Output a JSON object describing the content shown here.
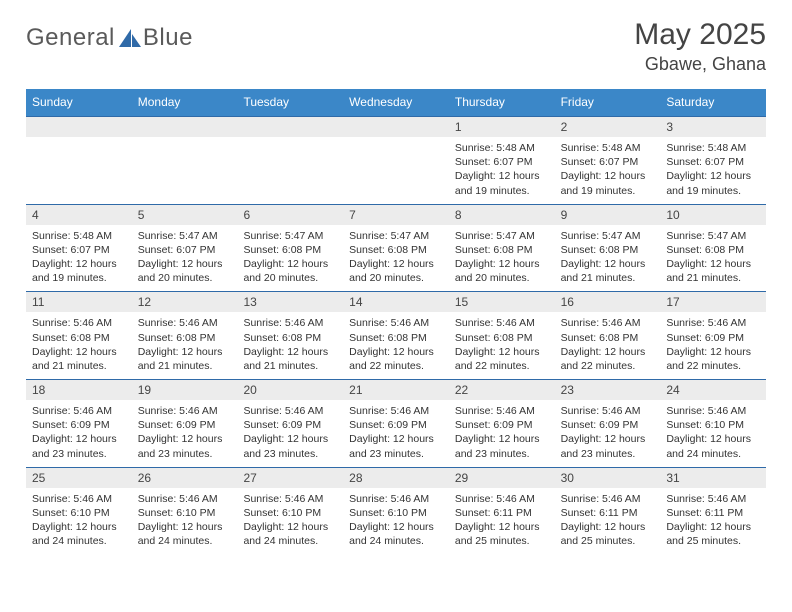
{
  "brand": {
    "name_part1": "General",
    "name_part2": "Blue",
    "text_color": "#5a5a5a",
    "icon_color": "#2f6aa8"
  },
  "title": {
    "month_year": "May 2025",
    "location": "Gbawe, Ghana"
  },
  "colors": {
    "header_bg": "#3b87c8",
    "week_divider": "#2f6aa8",
    "day_strip_bg": "#ececec",
    "page_bg": "#ffffff",
    "text": "#333333"
  },
  "weekdays": [
    "Sunday",
    "Monday",
    "Tuesday",
    "Wednesday",
    "Thursday",
    "Friday",
    "Saturday"
  ],
  "weeks": [
    [
      {
        "n": "",
        "sunrise": "",
        "sunset": "",
        "daylight": ""
      },
      {
        "n": "",
        "sunrise": "",
        "sunset": "",
        "daylight": ""
      },
      {
        "n": "",
        "sunrise": "",
        "sunset": "",
        "daylight": ""
      },
      {
        "n": "",
        "sunrise": "",
        "sunset": "",
        "daylight": ""
      },
      {
        "n": "1",
        "sunrise": "Sunrise: 5:48 AM",
        "sunset": "Sunset: 6:07 PM",
        "daylight": "Daylight: 12 hours and 19 minutes."
      },
      {
        "n": "2",
        "sunrise": "Sunrise: 5:48 AM",
        "sunset": "Sunset: 6:07 PM",
        "daylight": "Daylight: 12 hours and 19 minutes."
      },
      {
        "n": "3",
        "sunrise": "Sunrise: 5:48 AM",
        "sunset": "Sunset: 6:07 PM",
        "daylight": "Daylight: 12 hours and 19 minutes."
      }
    ],
    [
      {
        "n": "4",
        "sunrise": "Sunrise: 5:48 AM",
        "sunset": "Sunset: 6:07 PM",
        "daylight": "Daylight: 12 hours and 19 minutes."
      },
      {
        "n": "5",
        "sunrise": "Sunrise: 5:47 AM",
        "sunset": "Sunset: 6:07 PM",
        "daylight": "Daylight: 12 hours and 20 minutes."
      },
      {
        "n": "6",
        "sunrise": "Sunrise: 5:47 AM",
        "sunset": "Sunset: 6:08 PM",
        "daylight": "Daylight: 12 hours and 20 minutes."
      },
      {
        "n": "7",
        "sunrise": "Sunrise: 5:47 AM",
        "sunset": "Sunset: 6:08 PM",
        "daylight": "Daylight: 12 hours and 20 minutes."
      },
      {
        "n": "8",
        "sunrise": "Sunrise: 5:47 AM",
        "sunset": "Sunset: 6:08 PM",
        "daylight": "Daylight: 12 hours and 20 minutes."
      },
      {
        "n": "9",
        "sunrise": "Sunrise: 5:47 AM",
        "sunset": "Sunset: 6:08 PM",
        "daylight": "Daylight: 12 hours and 21 minutes."
      },
      {
        "n": "10",
        "sunrise": "Sunrise: 5:47 AM",
        "sunset": "Sunset: 6:08 PM",
        "daylight": "Daylight: 12 hours and 21 minutes."
      }
    ],
    [
      {
        "n": "11",
        "sunrise": "Sunrise: 5:46 AM",
        "sunset": "Sunset: 6:08 PM",
        "daylight": "Daylight: 12 hours and 21 minutes."
      },
      {
        "n": "12",
        "sunrise": "Sunrise: 5:46 AM",
        "sunset": "Sunset: 6:08 PM",
        "daylight": "Daylight: 12 hours and 21 minutes."
      },
      {
        "n": "13",
        "sunrise": "Sunrise: 5:46 AM",
        "sunset": "Sunset: 6:08 PM",
        "daylight": "Daylight: 12 hours and 21 minutes."
      },
      {
        "n": "14",
        "sunrise": "Sunrise: 5:46 AM",
        "sunset": "Sunset: 6:08 PM",
        "daylight": "Daylight: 12 hours and 22 minutes."
      },
      {
        "n": "15",
        "sunrise": "Sunrise: 5:46 AM",
        "sunset": "Sunset: 6:08 PM",
        "daylight": "Daylight: 12 hours and 22 minutes."
      },
      {
        "n": "16",
        "sunrise": "Sunrise: 5:46 AM",
        "sunset": "Sunset: 6:08 PM",
        "daylight": "Daylight: 12 hours and 22 minutes."
      },
      {
        "n": "17",
        "sunrise": "Sunrise: 5:46 AM",
        "sunset": "Sunset: 6:09 PM",
        "daylight": "Daylight: 12 hours and 22 minutes."
      }
    ],
    [
      {
        "n": "18",
        "sunrise": "Sunrise: 5:46 AM",
        "sunset": "Sunset: 6:09 PM",
        "daylight": "Daylight: 12 hours and 23 minutes."
      },
      {
        "n": "19",
        "sunrise": "Sunrise: 5:46 AM",
        "sunset": "Sunset: 6:09 PM",
        "daylight": "Daylight: 12 hours and 23 minutes."
      },
      {
        "n": "20",
        "sunrise": "Sunrise: 5:46 AM",
        "sunset": "Sunset: 6:09 PM",
        "daylight": "Daylight: 12 hours and 23 minutes."
      },
      {
        "n": "21",
        "sunrise": "Sunrise: 5:46 AM",
        "sunset": "Sunset: 6:09 PM",
        "daylight": "Daylight: 12 hours and 23 minutes."
      },
      {
        "n": "22",
        "sunrise": "Sunrise: 5:46 AM",
        "sunset": "Sunset: 6:09 PM",
        "daylight": "Daylight: 12 hours and 23 minutes."
      },
      {
        "n": "23",
        "sunrise": "Sunrise: 5:46 AM",
        "sunset": "Sunset: 6:09 PM",
        "daylight": "Daylight: 12 hours and 23 minutes."
      },
      {
        "n": "24",
        "sunrise": "Sunrise: 5:46 AM",
        "sunset": "Sunset: 6:10 PM",
        "daylight": "Daylight: 12 hours and 24 minutes."
      }
    ],
    [
      {
        "n": "25",
        "sunrise": "Sunrise: 5:46 AM",
        "sunset": "Sunset: 6:10 PM",
        "daylight": "Daylight: 12 hours and 24 minutes."
      },
      {
        "n": "26",
        "sunrise": "Sunrise: 5:46 AM",
        "sunset": "Sunset: 6:10 PM",
        "daylight": "Daylight: 12 hours and 24 minutes."
      },
      {
        "n": "27",
        "sunrise": "Sunrise: 5:46 AM",
        "sunset": "Sunset: 6:10 PM",
        "daylight": "Daylight: 12 hours and 24 minutes."
      },
      {
        "n": "28",
        "sunrise": "Sunrise: 5:46 AM",
        "sunset": "Sunset: 6:10 PM",
        "daylight": "Daylight: 12 hours and 24 minutes."
      },
      {
        "n": "29",
        "sunrise": "Sunrise: 5:46 AM",
        "sunset": "Sunset: 6:11 PM",
        "daylight": "Daylight: 12 hours and 25 minutes."
      },
      {
        "n": "30",
        "sunrise": "Sunrise: 5:46 AM",
        "sunset": "Sunset: 6:11 PM",
        "daylight": "Daylight: 12 hours and 25 minutes."
      },
      {
        "n": "31",
        "sunrise": "Sunrise: 5:46 AM",
        "sunset": "Sunset: 6:11 PM",
        "daylight": "Daylight: 12 hours and 25 minutes."
      }
    ]
  ]
}
